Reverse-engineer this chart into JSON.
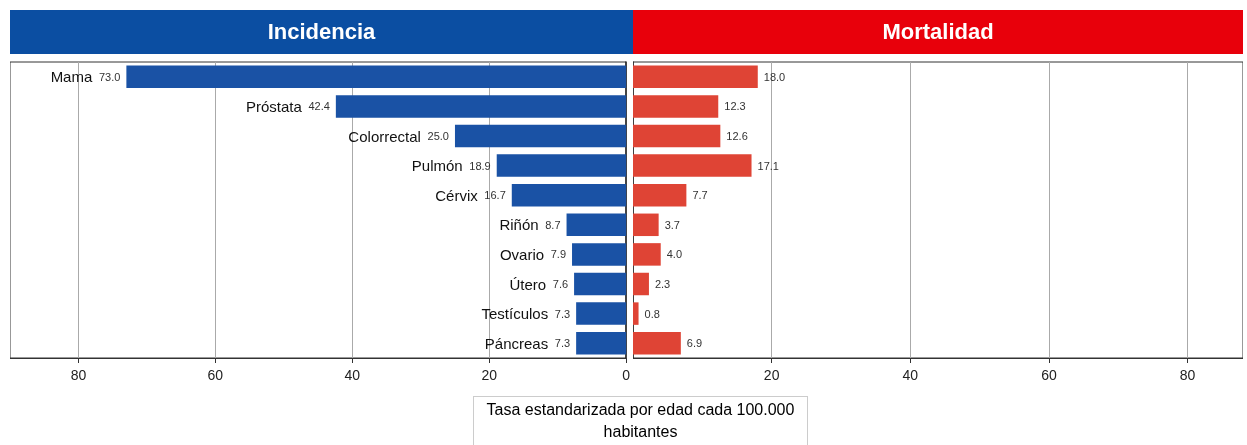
{
  "chart_data": [
    {
      "type": "bar",
      "orientation": "horizontal",
      "title": "Incidencia",
      "xlabel": "Tasa estandarizada por edad cada 100.000 habitantes",
      "categories": [
        "Mama",
        "Próstata",
        "Colorrectal",
        "Pulmón",
        "Cérvix",
        "Riñón",
        "Ovario",
        "Útero",
        "Testículos",
        "Páncreas"
      ],
      "values": [
        73.0,
        42.4,
        25.0,
        18.9,
        16.7,
        8.7,
        7.9,
        7.6,
        7.3,
        7.3
      ],
      "value_labels": [
        "73.0",
        "42.4",
        "25.0",
        "18.9",
        "16.7",
        "8.7",
        "7.9",
        "7.6",
        "7.3",
        "7.3"
      ],
      "color": "#1a52a5",
      "xlim": [
        90,
        0
      ],
      "xticks": [
        80,
        60,
        40,
        20,
        0
      ],
      "grid": "x"
    },
    {
      "type": "bar",
      "orientation": "horizontal",
      "title": "Mortalidad",
      "categories": [
        null,
        null,
        null,
        null,
        null,
        null,
        null,
        null,
        null,
        null
      ],
      "values": [
        18.0,
        12.3,
        12.6,
        17.1,
        7.7,
        3.7,
        4.0,
        2.3,
        0.8,
        6.9
      ],
      "value_labels": [
        "18.0",
        "12.3",
        "12.6",
        "17.1",
        "7.7",
        "3.7",
        "4.0",
        "2.3",
        "0.8",
        "6.9"
      ],
      "color": "#df4435",
      "xlim": [
        0,
        88
      ],
      "xticks": [
        20,
        40,
        60,
        80
      ],
      "grid": "x",
      "tick_labels": "x"
    }
  ]
}
